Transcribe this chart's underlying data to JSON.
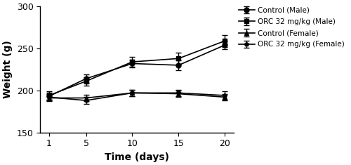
{
  "x": [
    1,
    5,
    10,
    15,
    20
  ],
  "series": [
    {
      "label": "Control (Male)",
      "y": [
        193,
        214,
        232,
        230,
        254
      ],
      "yerr": [
        4,
        5,
        5,
        6,
        5
      ],
      "marker": "o",
      "markersize": 5
    },
    {
      "label": "ORC 32 mg/kg (Male)",
      "y": [
        194,
        211,
        234,
        238,
        259
      ],
      "yerr": [
        5,
        5,
        6,
        7,
        7
      ],
      "marker": "s",
      "markersize": 5
    },
    {
      "label": "Control (Female)",
      "y": [
        191,
        191,
        197,
        196,
        192
      ],
      "yerr": [
        4,
        4,
        4,
        4,
        4
      ],
      "marker": "^",
      "markersize": 5
    },
    {
      "label": "ORC 32 mg/kg (Female)",
      "y": [
        192,
        188,
        197,
        197,
        194
      ],
      "yerr": [
        4,
        4,
        4,
        4,
        5
      ],
      "marker": "p",
      "markersize": 4
    }
  ],
  "color": "#000000",
  "ylabel": "Weight (g)",
  "xlabel": "Time (days)",
  "ylim": [
    150,
    300
  ],
  "yticks": [
    150,
    200,
    250,
    300
  ],
  "xticks": [
    1,
    5,
    10,
    15,
    20
  ],
  "legend_fontsize": 7.5,
  "axis_label_fontsize": 10,
  "tick_fontsize": 9,
  "figsize": [
    5.0,
    2.35
  ],
  "dpi": 100,
  "linewidth": 1.2,
  "capsize": 3,
  "elinewidth": 1.0,
  "capthick": 1.0
}
